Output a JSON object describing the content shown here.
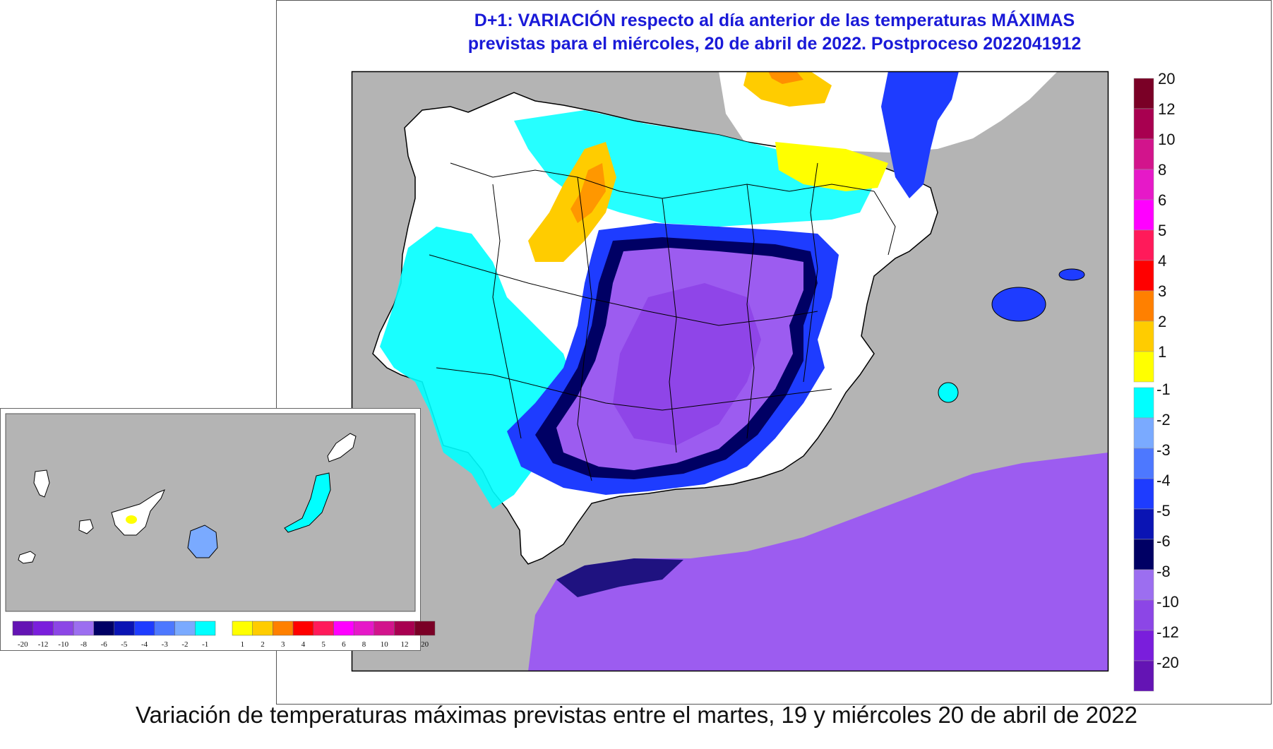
{
  "title_line1": "D+1:  VARIACIÓN respecto al día anterior de las temperaturas MÁXIMAS",
  "title_line2": "previstas para el miércoles, 20 de abril de 2022. Postproceso 2022041912",
  "caption": "Variación de temperaturas máximas previstas entre el martes, 19 y miércoles 20 de abril de 2022",
  "legend": {
    "positive_labels": [
      "20",
      "12",
      "10",
      "8",
      "6",
      "5",
      "4",
      "3",
      "2",
      "1"
    ],
    "negative_labels": [
      "-1",
      "-2",
      "-3",
      "-4",
      "-5",
      "-6",
      "-8",
      "-10",
      "-12",
      "-20"
    ],
    "positive_colors": [
      "#7a0026",
      "#a80050",
      "#d2148c",
      "#e619c8",
      "#ff00ff",
      "#ff1a5a",
      "#ff0000",
      "#ff8000",
      "#ffcc00",
      "#ffff00"
    ],
    "negative_colors": [
      "#00ffff",
      "#7aaaff",
      "#4d78ff",
      "#1e3cff",
      "#0a14b4",
      "#000064",
      "#9c6ef0",
      "#8c46e6",
      "#7a1edc",
      "#6414b4"
    ]
  },
  "inset_legend": {
    "labels": [
      "-20",
      "-12",
      "-10",
      "-8",
      "-6",
      "-5",
      "-4",
      "-3",
      "-2",
      "-1",
      "1",
      "2",
      "3",
      "4",
      "5",
      "6",
      "8",
      "10",
      "12",
      "20"
    ],
    "colors": [
      "#6414b4",
      "#7a1edc",
      "#8c46e6",
      "#9c6ef0",
      "#000064",
      "#0a14b4",
      "#1e3cff",
      "#4d78ff",
      "#7aaaff",
      "#00ffff",
      "#ffff00",
      "#ffcc00",
      "#ff8000",
      "#ff0000",
      "#ff1a5a",
      "#ff00ff",
      "#e619c8",
      "#d2148c",
      "#a80050",
      "#7a0026"
    ]
  },
  "colors": {
    "sea": "#b4b4b4",
    "title": "#1a1ad8"
  }
}
